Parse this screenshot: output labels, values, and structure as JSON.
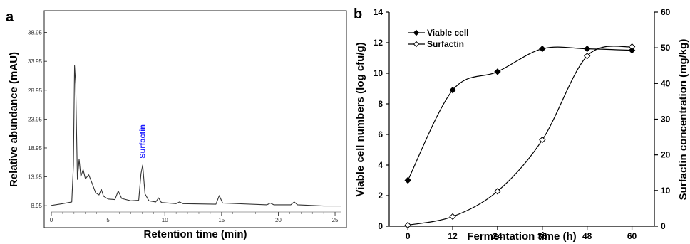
{
  "panels": {
    "a": {
      "letter": "a"
    },
    "b": {
      "letter": "b"
    }
  },
  "chart_data": [
    {
      "type": "line",
      "panel": "a",
      "xlabel": "Retention time (min)",
      "ylabel": "Relative abundance (mAU)",
      "x_ticks": [
        "0",
        "5",
        "10",
        "15",
        "20",
        "25"
      ],
      "y_ticks": [
        "8.95",
        "13.95",
        "18.95",
        "23.95",
        "28.95",
        "33.95",
        "38.95"
      ],
      "xlim": [
        0,
        25.5
      ],
      "ylim": [
        7.0,
        40.5
      ],
      "annotation": {
        "text": "Surfactin",
        "x": 8.0,
        "y": 16.4
      },
      "series": [
        {
          "values": [
            [
              0,
              9.0
            ],
            [
              1.0,
              9.3
            ],
            [
              1.8,
              9.6
            ],
            [
              1.95,
              16.0
            ],
            [
              2.05,
              33.2
            ],
            [
              2.15,
              30.0
            ],
            [
              2.3,
              13.5
            ],
            [
              2.45,
              17.0
            ],
            [
              2.6,
              14.0
            ],
            [
              2.8,
              15.2
            ],
            [
              3.0,
              13.6
            ],
            [
              3.3,
              14.3
            ],
            [
              3.6,
              12.8
            ],
            [
              3.9,
              11.2
            ],
            [
              4.2,
              10.8
            ],
            [
              4.4,
              11.8
            ],
            [
              4.6,
              10.6
            ],
            [
              5.0,
              10.1
            ],
            [
              5.6,
              10.0
            ],
            [
              5.9,
              11.5
            ],
            [
              6.2,
              10.2
            ],
            [
              7.0,
              9.8
            ],
            [
              7.7,
              9.9
            ],
            [
              7.9,
              14.5
            ],
            [
              8.05,
              16.0
            ],
            [
              8.25,
              11.0
            ],
            [
              8.6,
              9.8
            ],
            [
              9.2,
              9.6
            ],
            [
              9.45,
              10.3
            ],
            [
              9.7,
              9.5
            ],
            [
              11.0,
              9.3
            ],
            [
              11.3,
              9.6
            ],
            [
              11.6,
              9.3
            ],
            [
              14.5,
              9.2
            ],
            [
              14.8,
              10.7
            ],
            [
              15.1,
              9.4
            ],
            [
              19.0,
              9.1
            ],
            [
              19.3,
              9.4
            ],
            [
              19.6,
              9.1
            ],
            [
              21.1,
              9.1
            ],
            [
              21.4,
              9.6
            ],
            [
              21.7,
              9.1
            ],
            [
              24.0,
              8.9
            ],
            [
              25.5,
              8.9
            ]
          ]
        }
      ]
    },
    {
      "type": "line",
      "panel": "b",
      "xlabel": "Fermentation time (h)",
      "ylabel": "Viable cell numbers (log cfu/g)",
      "y2label": "Surfactin concentration (mg/kg)",
      "x": [
        0,
        12,
        24,
        36,
        48,
        60
      ],
      "xlim": [
        -5,
        66
      ],
      "ylim": [
        0,
        14
      ],
      "y2lim": [
        0,
        60
      ],
      "y_ticks": [
        "0",
        "2",
        "4",
        "6",
        "8",
        "10",
        "12",
        "14"
      ],
      "y2_ticks": [
        "0",
        "10",
        "20",
        "30",
        "40",
        "50",
        "60"
      ],
      "legend_position": "top-left",
      "series": [
        {
          "name": "Viable cell",
          "axis": "left",
          "marker": "filled-diamond",
          "values": [
            3.0,
            8.9,
            10.1,
            11.6,
            11.6,
            11.5
          ]
        },
        {
          "name": "Surfactin",
          "axis": "right",
          "marker": "open-diamond",
          "values": [
            0.3,
            2.7,
            9.8,
            24.2,
            47.7,
            50.3
          ]
        }
      ]
    }
  ]
}
